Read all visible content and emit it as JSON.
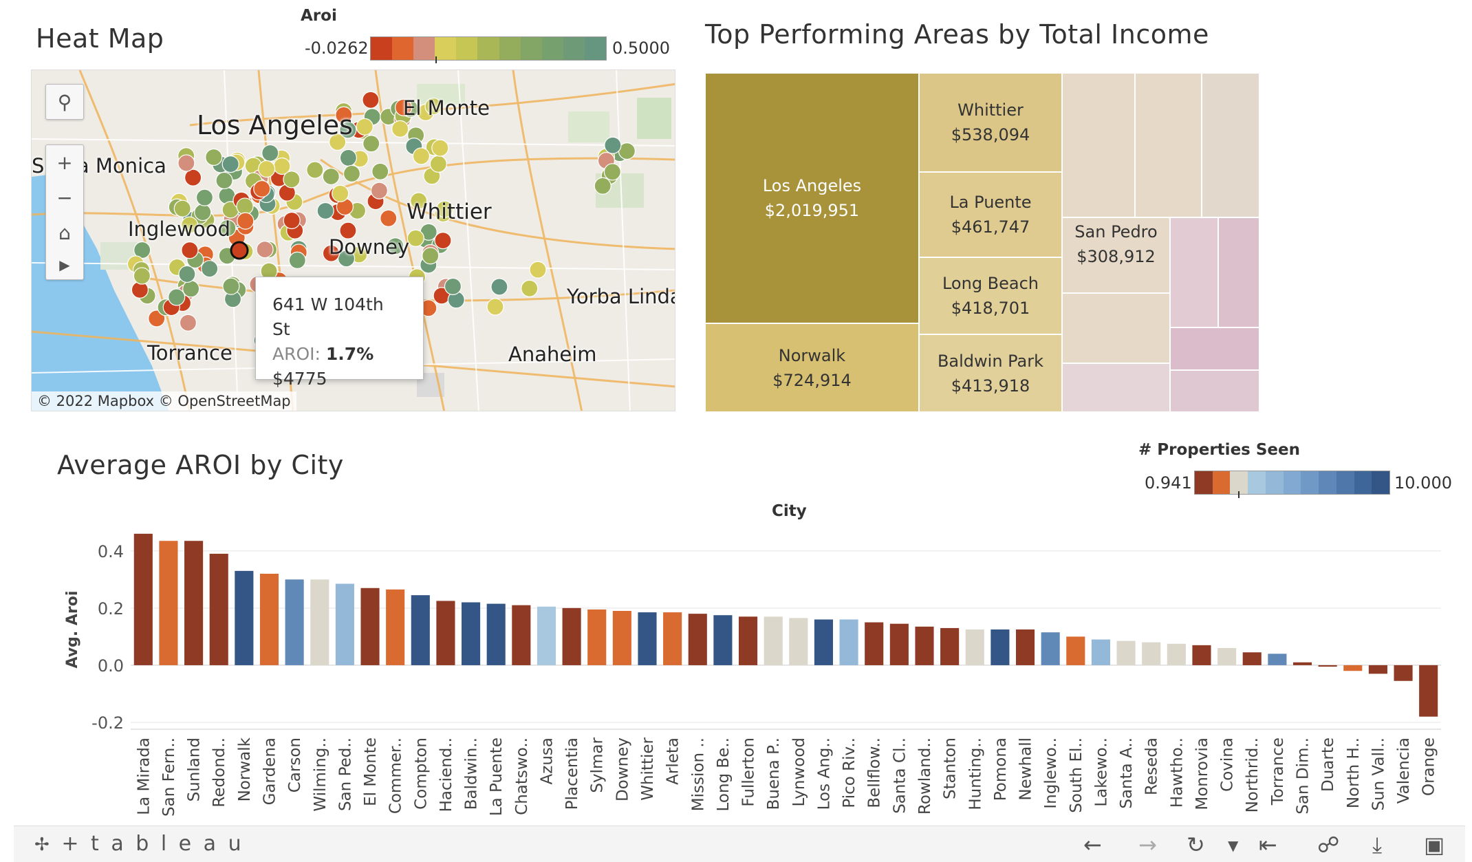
{
  "heatmap": {
    "title": "Heat Map",
    "legend": {
      "title": "Aroi",
      "min": "-0.0262",
      "max": "0.5000",
      "colors": [
        "#c8401e",
        "#e0662f",
        "#d48e7c",
        "#d9cd5c",
        "#c6c654",
        "#a9b756",
        "#94ad5d",
        "#83a566",
        "#77a06f",
        "#6f9a78",
        "#679680"
      ]
    },
    "city_labels": [
      "Los Angeles",
      "El Monte",
      "Santa Monica",
      "Inglewood",
      "Whittier",
      "Downey",
      "Yorba Linda",
      "Torrance",
      "Anaheim"
    ],
    "tooltip": {
      "address": "641 W 104th St",
      "aroi_label": "AROI: ",
      "aroi_value": "1.7%",
      "price": "$4775"
    },
    "copyright": "© 2022 Mapbox  © OpenStreetMap",
    "controls": [
      "search-icon",
      "zoom-in-icon",
      "zoom-out-icon",
      "home-icon",
      "play-icon"
    ]
  },
  "treemap": {
    "title": "Top Performing Areas by Total Income",
    "tiles": [
      {
        "name": "Los Angeles",
        "value": "$2,019,951",
        "color": "#a8923a",
        "text": "#ffffff"
      },
      {
        "name": "Norwalk",
        "value": "$724,914",
        "color": "#d8c072",
        "text": "#333333"
      },
      {
        "name": "Whittier",
        "value": "$538,094",
        "color": "#dcc687",
        "text": "#333333"
      },
      {
        "name": "La Puente",
        "value": "$461,747",
        "color": "#dfcb90",
        "text": "#333333"
      },
      {
        "name": "Long Beach",
        "value": "$418,701",
        "color": "#e1cf98",
        "text": "#333333"
      },
      {
        "name": "Baldwin Park",
        "value": "$413,918",
        "color": "#e2d09b",
        "text": "#333333"
      },
      {
        "name": "San Pedro",
        "value": "$308,912",
        "color": "#e6d9c7",
        "text": "#333333"
      }
    ]
  },
  "bar_chart": {
    "title": "Average AROI by City",
    "legend": {
      "title": "# Properties Seen",
      "min": "0.941",
      "max": "10.000",
      "colors": [
        "#8e3a24",
        "#d96a30",
        "#dbd7cb",
        "#a8c8e0",
        "#93b8d8",
        "#82a9d1",
        "#7199c6",
        "#5f88b9",
        "#4f77aa",
        "#3f6698",
        "#345686"
      ]
    }
  },
  "chart_data": {
    "type": "bar",
    "title": "Average AROI by City",
    "xlabel": "City",
    "ylabel": "Avg. Aroi",
    "ylim": [
      -0.2,
      0.45
    ],
    "yticks": [
      -0.2,
      0.0,
      0.2,
      0.4
    ],
    "ytick_labels": [
      "-0.2",
      "0.0",
      "0.2",
      "0.4"
    ],
    "categories": [
      "La Mirada",
      "San Fern..",
      "Sunland",
      "Redond..",
      "Norwalk",
      "Gardena",
      "Carson",
      "Wilming..",
      "San Ped..",
      "El Monte",
      "Commer..",
      "Compton",
      "Haciend..",
      "Baldwin..",
      "La Puente",
      "Chatswo..",
      "Azusa",
      "Placentia",
      "Sylmar",
      "Downey",
      "Whittier",
      "Arleta",
      "Mission ..",
      "Long Be..",
      "Fullerton",
      "Buena P..",
      "Lynwood",
      "Los Ang..",
      "Pico Riv..",
      "Bellflow..",
      "Santa Cl..",
      "Rowland..",
      "Stanton",
      "Hunting..",
      "Pomona",
      "Newhall",
      "Inglewo..",
      "South El..",
      "Lakewo..",
      "Santa A..",
      "Reseda",
      "Hawtho..",
      "Monrovia",
      "Covina",
      "Northrid..",
      "Torrance",
      "San Dim..",
      "Duarte",
      "North H..",
      "Sun Vall..",
      "Valencia",
      "Orange"
    ],
    "values": [
      0.46,
      0.435,
      0.435,
      0.39,
      0.33,
      0.32,
      0.3,
      0.3,
      0.285,
      0.27,
      0.265,
      0.245,
      0.225,
      0.22,
      0.215,
      0.21,
      0.205,
      0.2,
      0.195,
      0.19,
      0.185,
      0.185,
      0.18,
      0.175,
      0.17,
      0.17,
      0.165,
      0.16,
      0.16,
      0.15,
      0.145,
      0.135,
      0.13,
      0.125,
      0.125,
      0.125,
      0.115,
      0.1,
      0.09,
      0.085,
      0.08,
      0.075,
      0.07,
      0.06,
      0.045,
      0.04,
      0.01,
      -0.005,
      -0.02,
      -0.03,
      -0.055,
      -0.18
    ],
    "colors": [
      "#8e3a24",
      "#d96a30",
      "#8e3a24",
      "#8e3a24",
      "#345686",
      "#d96a30",
      "#6189b8",
      "#dbd7cb",
      "#93b8d8",
      "#8e3a24",
      "#d96a30",
      "#345686",
      "#8e3a24",
      "#345686",
      "#345686",
      "#8e3a24",
      "#a8c8e0",
      "#8e3a24",
      "#d96a30",
      "#d96a30",
      "#345686",
      "#d96a30",
      "#8e3a24",
      "#345686",
      "#8e3a24",
      "#dbd7cb",
      "#dbd7cb",
      "#345686",
      "#93b8d8",
      "#8e3a24",
      "#8e3a24",
      "#8e3a24",
      "#8e3a24",
      "#dbd7cb",
      "#345686",
      "#8e3a24",
      "#6189b8",
      "#d96a30",
      "#93b8d8",
      "#dbd7cb",
      "#dbd7cb",
      "#dbd7cb",
      "#8e3a24",
      "#dbd7cb",
      "#8e3a24",
      "#6189b8",
      "#8e3a24",
      "#8e3a24",
      "#d96a30",
      "#8e3a24",
      "#8e3a24",
      "#8e3a24"
    ]
  },
  "footer": {
    "brand": "+ t a b l e a u",
    "icons": [
      "undo-icon",
      "redo-icon",
      "revert-icon",
      "dropdown-icon",
      "reset-icon",
      "share-icon",
      "download-icon",
      "fullscreen-icon"
    ]
  }
}
